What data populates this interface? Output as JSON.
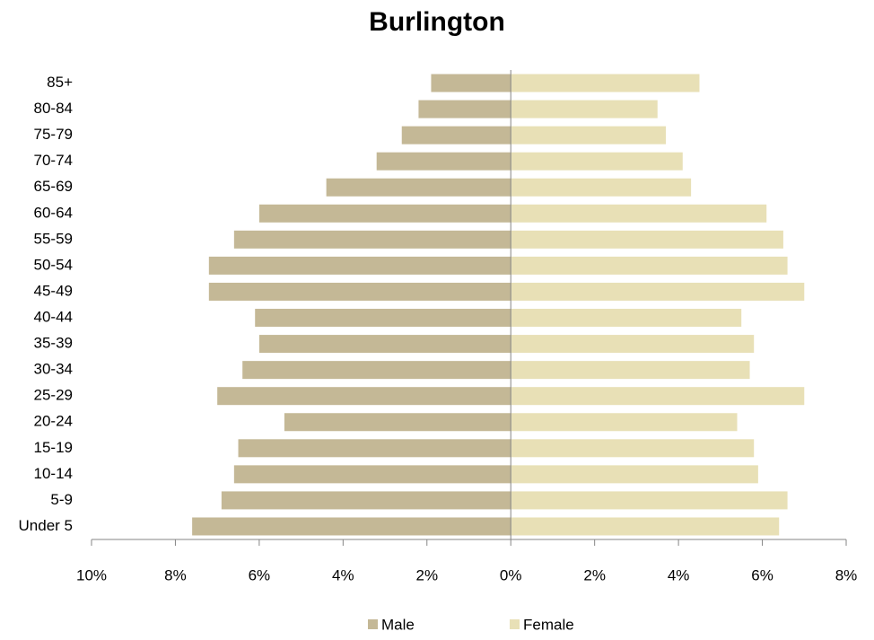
{
  "chart_data": {
    "type": "bar",
    "orientation": "horizontal",
    "title": "Burlington",
    "categories": [
      "Under 5",
      "5-9",
      "10-14",
      "15-19",
      "20-24",
      "25-29",
      "30-34",
      "35-39",
      "40-44",
      "45-49",
      "50-54",
      "55-59",
      "60-64",
      "65-69",
      "70-74",
      "75-79",
      "80-84",
      "85+"
    ],
    "series": [
      {
        "name": "Male",
        "color": "#c4b896",
        "values": [
          -7.6,
          -6.9,
          -6.6,
          -6.5,
          -5.4,
          -7.0,
          -6.4,
          -6.0,
          -6.1,
          -7.2,
          -7.2,
          -6.6,
          -6.0,
          -4.4,
          -3.2,
          -2.6,
          -2.2,
          -1.9
        ]
      },
      {
        "name": "Female",
        "color": "#e8e0b6",
        "values": [
          6.4,
          6.6,
          5.9,
          5.8,
          5.4,
          7.0,
          5.7,
          5.8,
          5.5,
          7.0,
          6.6,
          6.5,
          6.1,
          4.3,
          4.1,
          3.7,
          3.5,
          4.5
        ]
      }
    ],
    "xlim": [
      -10,
      8
    ],
    "xticks": [
      {
        "value": -10,
        "label": "10%"
      },
      {
        "value": -8,
        "label": "8%"
      },
      {
        "value": -6,
        "label": "6%"
      },
      {
        "value": -4,
        "label": "4%"
      },
      {
        "value": -2,
        "label": "2%"
      },
      {
        "value": 0,
        "label": "0%"
      },
      {
        "value": 2,
        "label": "2%"
      },
      {
        "value": 4,
        "label": "4%"
      },
      {
        "value": 6,
        "label": "6%"
      },
      {
        "value": 8,
        "label": "8%"
      }
    ],
    "legend": "bottom"
  }
}
